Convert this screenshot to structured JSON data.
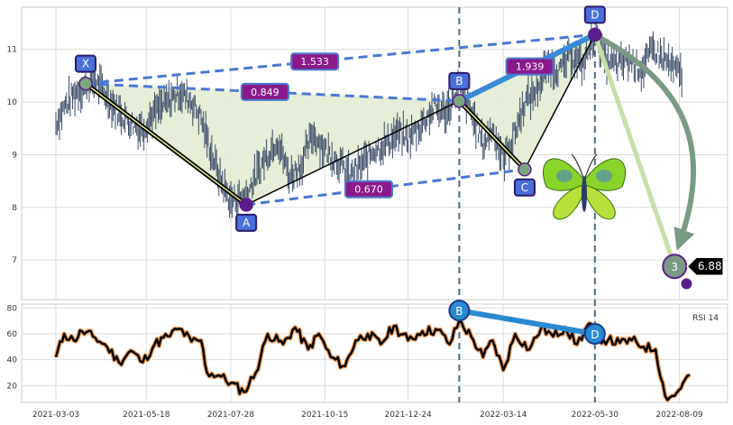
{
  "chart_data": [
    {
      "type": "line",
      "subtype": "ohlc-with-xabcd-harmonic-pattern",
      "x_ticks": [
        "2021-03-03",
        "2021-05-18",
        "2021-07-28",
        "2021-10-15",
        "2021-12-24",
        "2022-03-14",
        "2022-05-30",
        "2022-08-09"
      ],
      "ylim": [
        6.25,
        11.8
      ],
      "y_ticks": [
        7,
        8,
        9,
        10,
        11
      ],
      "grid": true,
      "price_path": [
        [
          "2021-03-03",
          9.6
        ],
        [
          "2021-03-10",
          9.9
        ],
        [
          "2021-03-20",
          10.2
        ],
        [
          "2021-03-28",
          10.3
        ],
        [
          "2021-04-05",
          10.4
        ],
        [
          "2021-04-15",
          10.1
        ],
        [
          "2021-04-25",
          9.8
        ],
        [
          "2021-05-05",
          9.6
        ],
        [
          "2021-05-15",
          9.5
        ],
        [
          "2021-05-25",
          9.8
        ],
        [
          "2021-06-05",
          10.0
        ],
        [
          "2021-06-15",
          10.2
        ],
        [
          "2021-06-25",
          10.0
        ],
        [
          "2021-07-03",
          9.7
        ],
        [
          "2021-07-08",
          9.3
        ],
        [
          "2021-07-18",
          8.6
        ],
        [
          "2021-07-28",
          8.1
        ],
        [
          "2021-08-10",
          8.25
        ],
        [
          "2021-08-25",
          8.9
        ],
        [
          "2021-09-05",
          9.3
        ],
        [
          "2021-09-15",
          8.6
        ],
        [
          "2021-09-25",
          8.8
        ],
        [
          "2021-10-05",
          9.4
        ],
        [
          "2021-10-15",
          9.1
        ],
        [
          "2021-10-25",
          8.9
        ],
        [
          "2021-11-05",
          8.6
        ],
        [
          "2021-11-15",
          8.8
        ],
        [
          "2021-11-25",
          9.1
        ],
        [
          "2021-12-05",
          9.2
        ],
        [
          "2021-12-15",
          9.4
        ],
        [
          "2021-12-24",
          9.3
        ],
        [
          "2022-01-05",
          9.6
        ],
        [
          "2022-01-15",
          9.9
        ],
        [
          "2022-01-25",
          9.8
        ],
        [
          "2022-02-05",
          10.3
        ],
        [
          "2022-02-15",
          9.8
        ],
        [
          "2022-02-25",
          9.2
        ],
        [
          "2022-03-05",
          9.5
        ],
        [
          "2022-03-14",
          8.9
        ],
        [
          "2022-03-22",
          9.3
        ],
        [
          "2022-04-01",
          10.0
        ],
        [
          "2022-04-10",
          10.2
        ],
        [
          "2022-04-20",
          10.7
        ],
        [
          "2022-05-01",
          10.6
        ],
        [
          "2022-05-10",
          10.9
        ],
        [
          "2022-05-20",
          10.7
        ],
        [
          "2022-05-30",
          11.3
        ],
        [
          "2022-06-08",
          10.8
        ],
        [
          "2022-06-18",
          10.7
        ],
        [
          "2022-06-28",
          10.8
        ],
        [
          "2022-07-08",
          10.6
        ],
        [
          "2022-07-18",
          11.0
        ],
        [
          "2022-07-28",
          10.8
        ],
        [
          "2022-08-05",
          10.6
        ],
        [
          "2022-08-12",
          10.5
        ]
      ],
      "xabcd": [
        {
          "label": "X",
          "date": "2021-03-28",
          "price": 10.35
        },
        {
          "label": "A",
          "date": "2021-08-10",
          "price": 8.05
        },
        {
          "label": "B",
          "date": "2022-02-05",
          "price": 10.02
        },
        {
          "label": "C",
          "date": "2022-04-01",
          "price": 8.72
        },
        {
          "label": "D",
          "date": "2022-05-30",
          "price": 11.28
        }
      ],
      "ratios": [
        {
          "from": "X",
          "to": "D",
          "value": "1.533"
        },
        {
          "from": "X",
          "to": "B",
          "value": "0.849"
        },
        {
          "from": "B",
          "to": "D",
          "value": "1.939"
        },
        {
          "from": "A",
          "to": "C",
          "value": "0.670"
        }
      ],
      "target": {
        "label": "3",
        "price_label": "6.88",
        "date": "2022-08-05",
        "price": 6.88
      },
      "low_marker": {
        "date": "2022-08-15",
        "price": 6.55
      },
      "vertical_markers": [
        "2022-02-05",
        "2022-05-30"
      ],
      "colors": {
        "price": "#3a4a66",
        "pattern_fill": "#e3ecd3",
        "dash": "#4a78d0",
        "badge": "#4a6fd8",
        "ratio_badge": "#8a1a8a",
        "node": "#5a1e8c",
        "target_arrow": "#c8dfa8",
        "curve_arrow": "#7a9a85"
      }
    },
    {
      "type": "line",
      "title": "RSI 14",
      "x_ticks": [
        "2021-03-03",
        "2021-05-18",
        "2021-07-28",
        "2021-10-15",
        "2021-12-24",
        "2022-03-14",
        "2022-05-30",
        "2022-08-09"
      ],
      "ylim": [
        7,
        83
      ],
      "y_ticks": [
        20,
        40,
        60,
        80
      ],
      "grid": true,
      "series": [
        {
          "values_by_date": [
            [
              "2021-03-03",
              42
            ],
            [
              "2021-03-10",
              60
            ],
            [
              "2021-03-18",
              55
            ],
            [
              "2021-03-25",
              62
            ],
            [
              "2021-04-05",
              57
            ],
            [
              "2021-04-15",
              50
            ],
            [
              "2021-04-25",
              38
            ],
            [
              "2021-05-05",
              47
            ],
            [
              "2021-05-15",
              38
            ],
            [
              "2021-05-25",
              52
            ],
            [
              "2021-06-05",
              58
            ],
            [
              "2021-06-15",
              64
            ],
            [
              "2021-06-25",
              54
            ],
            [
              "2021-07-03",
              55
            ],
            [
              "2021-07-08",
              30
            ],
            [
              "2021-07-18",
              28
            ],
            [
              "2021-07-28",
              22
            ],
            [
              "2021-08-08",
              15
            ],
            [
              "2021-08-18",
              30
            ],
            [
              "2021-08-28",
              60
            ],
            [
              "2021-09-10",
              52
            ],
            [
              "2021-09-20",
              65
            ],
            [
              "2021-10-01",
              48
            ],
            [
              "2021-10-10",
              60
            ],
            [
              "2021-10-20",
              42
            ],
            [
              "2021-11-01",
              35
            ],
            [
              "2021-11-10",
              55
            ],
            [
              "2021-11-20",
              60
            ],
            [
              "2021-12-01",
              52
            ],
            [
              "2021-12-12",
              66
            ],
            [
              "2021-12-24",
              55
            ],
            [
              "2022-01-05",
              62
            ],
            [
              "2022-01-18",
              63
            ],
            [
              "2022-01-28",
              52
            ],
            [
              "2022-02-05",
              70
            ],
            [
              "2022-02-15",
              58
            ],
            [
              "2022-02-25",
              42
            ],
            [
              "2022-03-05",
              55
            ],
            [
              "2022-03-14",
              32
            ],
            [
              "2022-03-24",
              60
            ],
            [
              "2022-04-05",
              48
            ],
            [
              "2022-04-15",
              65
            ],
            [
              "2022-04-25",
              58
            ],
            [
              "2022-05-05",
              65
            ],
            [
              "2022-05-15",
              52
            ],
            [
              "2022-05-25",
              68
            ],
            [
              "2022-05-30",
              58
            ],
            [
              "2022-06-10",
              55
            ],
            [
              "2022-06-20",
              53
            ],
            [
              "2022-06-30",
              55
            ],
            [
              "2022-07-10",
              50
            ],
            [
              "2022-07-20",
              48
            ],
            [
              "2022-07-28",
              12
            ],
            [
              "2022-08-05",
              12
            ],
            [
              "2022-08-12",
              22
            ],
            [
              "2022-08-18",
              28
            ]
          ]
        }
      ],
      "pattern_points": [
        {
          "label": "B",
          "date": "2022-02-05",
          "value": 78
        },
        {
          "label": "D",
          "date": "2022-05-30",
          "value": 60
        }
      ],
      "vertical_markers": [
        "2022-02-05",
        "2022-05-30"
      ],
      "colors": {
        "line": "#000000",
        "halo": "#f0a060",
        "connector": "#2a8ad0",
        "point": "#2a8ad0"
      }
    }
  ]
}
